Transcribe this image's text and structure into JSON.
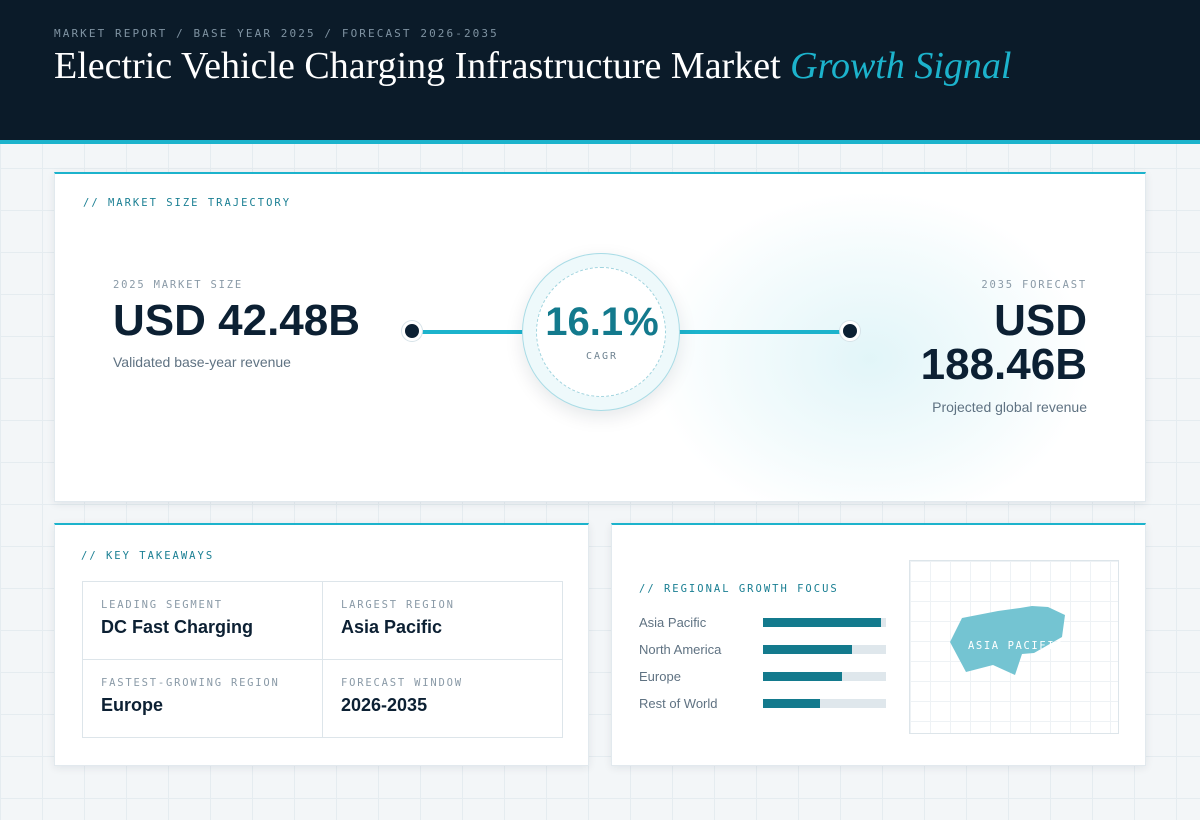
{
  "header": {
    "eyebrow": "MARKET REPORT / BASE YEAR 2025 / FORECAST 2026-2035",
    "title_main": "Electric Vehicle Charging Infrastructure Market ",
    "title_accent": "Growth Signal"
  },
  "trajectory": {
    "section_label": "// MARKET SIZE TRAJECTORY",
    "start": {
      "label": "2025 MARKET SIZE",
      "value": "USD 42.48B",
      "caption": "Validated base-year revenue"
    },
    "end": {
      "label": "2035 FORECAST",
      "value": "USD 188.46B",
      "caption": "Projected global revenue"
    },
    "cagr": {
      "value": "16.1%",
      "label": "CAGR"
    }
  },
  "takeaways": {
    "section_label": "// KEY TAKEAWAYS",
    "items": [
      {
        "label": "LEADING SEGMENT",
        "value": "DC Fast Charging"
      },
      {
        "label": "LARGEST REGION",
        "value": "Asia Pacific"
      },
      {
        "label": "FASTEST-GROWING REGION",
        "value": "Europe"
      },
      {
        "label": "FORECAST WINDOW",
        "value": "2026-2035"
      }
    ]
  },
  "regional": {
    "section_label": "// REGIONAL GROWTH FOCUS",
    "map_label": "ASIA PACIFIC",
    "map_color": "#74c4d2"
  },
  "colors": {
    "accent": "#1cb3cc",
    "navy": "#0b1b29",
    "bar_fill": "#137a8d",
    "bar_track": "#dfe7ec"
  },
  "chart_data": {
    "type": "bar",
    "orientation": "horizontal",
    "categories": [
      "Asia Pacific",
      "North America",
      "Europe",
      "Rest of World"
    ],
    "values": [
      0.96,
      0.72,
      0.64,
      0.46
    ],
    "xlim": [
      0,
      1
    ],
    "grid": false
  }
}
